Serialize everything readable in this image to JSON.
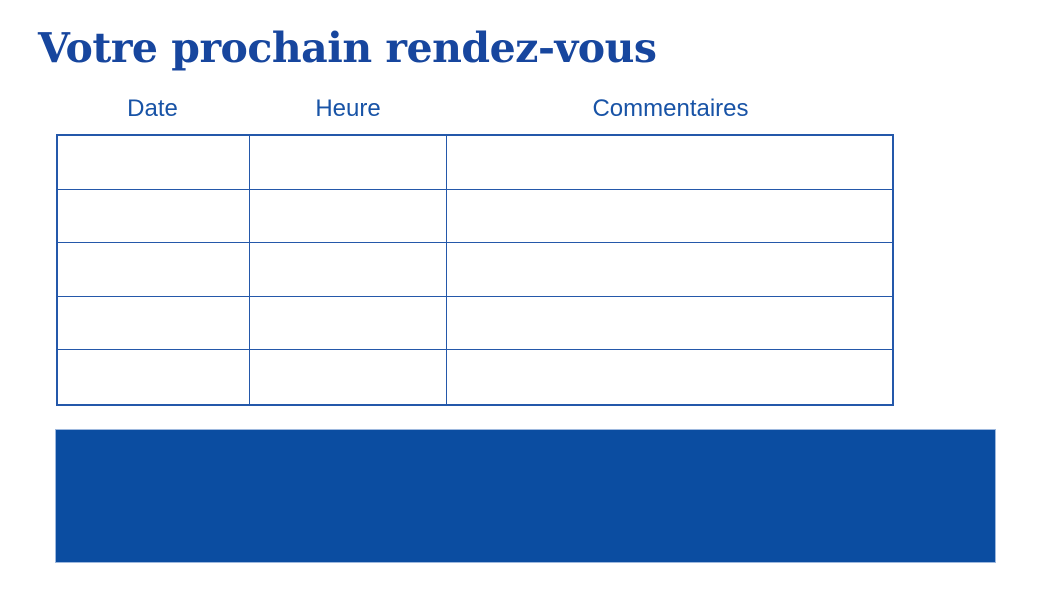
{
  "page": {
    "title": "Votre prochain rendez-vous"
  },
  "table": {
    "headers": [
      "Date",
      "Heure",
      "Commentaires"
    ],
    "rows": [
      [
        "",
        "",
        ""
      ],
      [
        "",
        "",
        ""
      ],
      [
        "",
        "",
        ""
      ],
      [
        "",
        "",
        ""
      ],
      [
        "",
        "",
        ""
      ]
    ]
  },
  "banner": {
    "text": ""
  },
  "colors": {
    "title": "#17469E",
    "header_text": "#1853A6",
    "table_border": "#2458AA",
    "banner_fill": "#0B4DA1",
    "banner_edge": "#9DB8DE"
  }
}
